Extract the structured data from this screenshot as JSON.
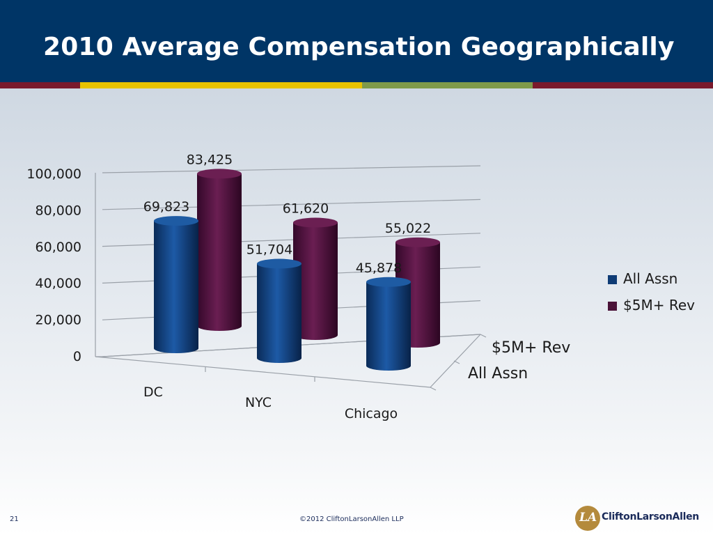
{
  "slide": {
    "title": "2010 Average Compensation Geographically",
    "page_number": "21",
    "copyright": "©2012 CliftonLarsonAllen LLP",
    "logo_text": "CliftonLarsonAllen",
    "colors": {
      "header": "#003566",
      "all_assn": "#0e3b75",
      "rev_5m": "#4a1238"
    }
  },
  "chart_data": {
    "type": "bar",
    "title": "",
    "xlabel": "",
    "ylabel": "",
    "categories": [
      "DC",
      "NYC",
      "Chicago"
    ],
    "series": [
      {
        "name": "All Assn",
        "values": [
          69823,
          51704,
          45878
        ],
        "labels": [
          "69,823",
          "51,704",
          "45,878"
        ]
      },
      {
        "name": "$5M+ Rev",
        "values": [
          83425,
          61620,
          55022
        ],
        "labels": [
          "83,425",
          "61,620",
          "55,022"
        ]
      }
    ],
    "ylim": [
      0,
      100000
    ],
    "yticks": [
      "0",
      "20,000",
      "40,000",
      "60,000",
      "80,000",
      "100,000"
    ],
    "depth_labels": [
      "$5M+ Rev",
      "All Assn"
    ],
    "legend": [
      "All Assn",
      "$5M+ Rev"
    ],
    "legend_position": "right",
    "grid": true,
    "style": "3d-cylinder"
  }
}
